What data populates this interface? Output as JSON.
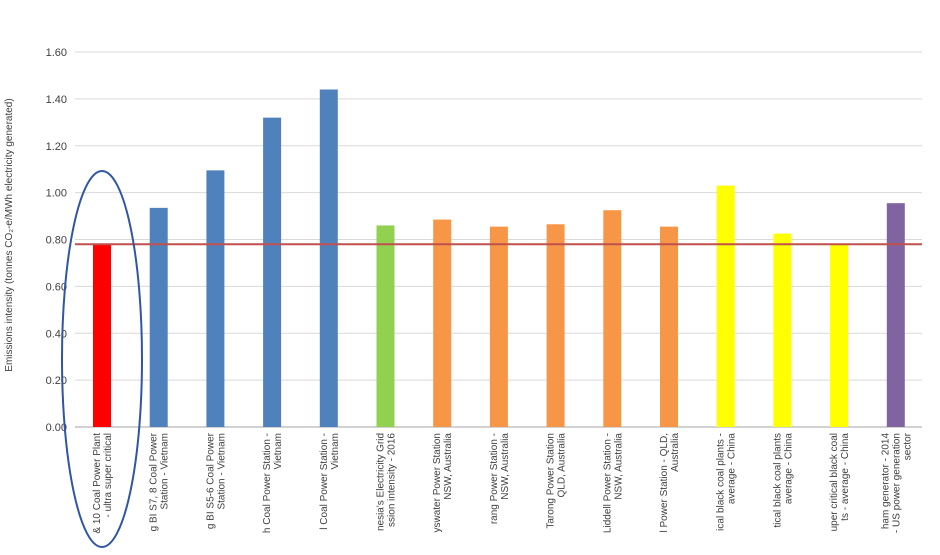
{
  "chart_data": {
    "type": "bar",
    "ylabel": "Emissions intensity (tonnes CO₂-e/MWh electricity generated)",
    "ylim": [
      0,
      1.6
    ],
    "yticks": [
      "0.00",
      "0.20",
      "0.40",
      "0.60",
      "0.80",
      "1.00",
      "1.20",
      "1.40",
      "1.60"
    ],
    "grid": true,
    "legend": "none",
    "categories": [
      [
        "& 10 Coal Power Plant",
        "- ultra super critical"
      ],
      [
        "g BI S7, 8 Coal Power",
        "Station - Vietnam"
      ],
      [
        "g BI S5-6 Coal Power",
        "Station - Vietnam"
      ],
      [
        "h Coal Power Station -",
        "Vietnam"
      ],
      [
        "l Coal Power Station -",
        "Vietnam"
      ],
      [
        "nesia's Electricity Grid",
        "ssion intensity - 2016"
      ],
      [
        "yswater Power Station",
        "NSW, Australia"
      ],
      [
        "rang Power Station -",
        "NSW, Australia"
      ],
      [
        "Tarong Power Station",
        "QLD, Australia"
      ],
      [
        "Liddell Power Station -",
        "NSW, Australia"
      ],
      [
        "l Power Station - QLD,",
        "Australia"
      ],
      [
        "ical black coal plants -",
        "average - China"
      ],
      [
        "tical black coal plants",
        "average - China"
      ],
      [
        "uper critical black coal",
        "ts - average - China"
      ],
      [
        "ham generator - 2014",
        "- US power generation",
        "sector"
      ]
    ],
    "values": [
      0.78,
      0.935,
      1.095,
      1.32,
      1.44,
      0.86,
      0.885,
      0.855,
      0.865,
      0.925,
      0.855,
      1.03,
      0.825,
      0.78,
      0.955
    ],
    "bar_colors": [
      "#ff0000",
      "#4f81bd",
      "#4f81bd",
      "#4f81bd",
      "#4f81bd",
      "#92d050",
      "#f79646",
      "#f79646",
      "#f79646",
      "#f79646",
      "#f79646",
      "#ffff00",
      "#ffff00",
      "#ffff00",
      "#8064a2"
    ],
    "reference_line": {
      "value": 0.78,
      "color": "#c0504d"
    },
    "highlight": {
      "shape": "ellipse",
      "target_index": 0,
      "color": "#2f55a4"
    },
    "colors": {
      "grid": "#d9d9d9",
      "axis": "#a6a6a6",
      "text": "#404040"
    }
  }
}
